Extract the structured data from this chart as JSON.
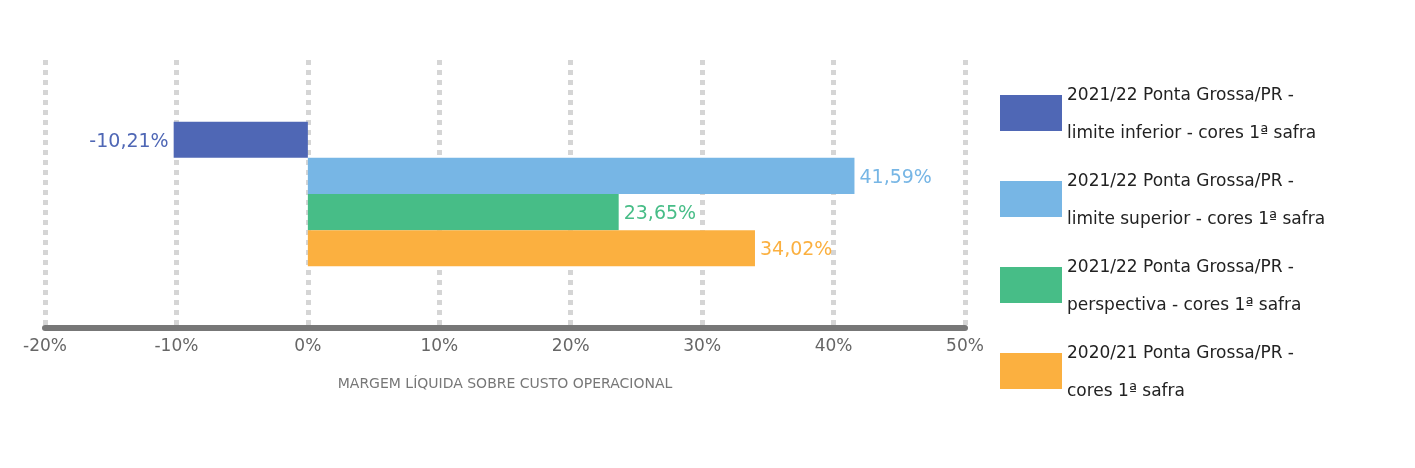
{
  "chart_data": {
    "type": "bar",
    "orientation": "horizontal",
    "xlabel": "MARGEM LÍQUIDA SOBRE CUSTO OPERACIONAL",
    "categories": [
      null
    ],
    "series": [
      {
        "name": "2021/22 Ponta Grossa/PR - limite inferior - cores 1ª safra",
        "color": "#4f67b5",
        "values": [
          -10.21
        ],
        "value_labels": [
          "-10,21%"
        ]
      },
      {
        "name": "2021/22 Ponta Grossa/PR - limite superior - cores 1ª safra",
        "color": "#77b6e5",
        "values": [
          41.59
        ],
        "value_labels": [
          "41,59%"
        ]
      },
      {
        "name": "2021/22 Ponta Grossa/PR - perspectiva - cores 1ª safra",
        "color": "#47bd87",
        "values": [
          23.65
        ],
        "value_labels": [
          "23,65%"
        ]
      },
      {
        "name": "2020/21 Ponta Grossa/PR - cores 1ª safra",
        "color": "#fbb040",
        "values": [
          34.02
        ],
        "value_labels": [
          "34,02%"
        ]
      }
    ],
    "xlim": [
      -20,
      50
    ],
    "xticks": [
      {
        "value": -20,
        "label": "-20%"
      },
      {
        "value": -10,
        "label": "-10%"
      },
      {
        "value": 0,
        "label": "0%"
      },
      {
        "value": 10,
        "label": "10%"
      },
      {
        "value": 20,
        "label": "20%"
      },
      {
        "value": 30,
        "label": "30%"
      },
      {
        "value": 40,
        "label": "40%"
      },
      {
        "value": 50,
        "label": "50%"
      }
    ],
    "grid": "x",
    "legend": "right"
  }
}
